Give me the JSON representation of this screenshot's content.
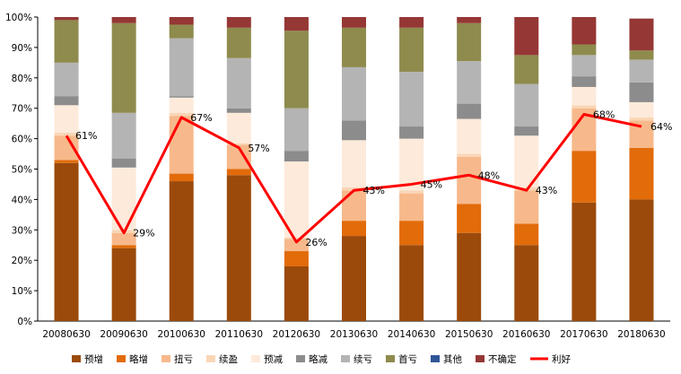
{
  "chart_data": {
    "type": "bar",
    "stacked": true,
    "percent_stacked": true,
    "categories": [
      "20080630",
      "20090630",
      "20100630",
      "20110630",
      "20120630",
      "20130630",
      "20140630",
      "20150630",
      "20160630",
      "20170630",
      "20180630"
    ],
    "ylim": [
      0,
      100
    ],
    "y_ticks": [
      "0%",
      "10%",
      "20%",
      "30%",
      "40%",
      "50%",
      "60%",
      "70%",
      "80%",
      "90%",
      "100%"
    ],
    "series": [
      {
        "name": "预增",
        "color": "#9B4A0B",
        "values": [
          52,
          24,
          46,
          48,
          18,
          28,
          25,
          29,
          25,
          39,
          40
        ]
      },
      {
        "name": "略增",
        "color": "#E26B0A",
        "values": [
          1,
          1,
          2.5,
          2,
          5,
          5,
          8,
          9.5,
          7,
          17,
          17
        ]
      },
      {
        "name": "扭亏",
        "color": "#F7B98B",
        "values": [
          8,
          4,
          19,
          8,
          4,
          10,
          9,
          15.5,
          11,
          14,
          9
        ]
      },
      {
        "name": "续盈",
        "color": "#FAD6B6",
        "values": [
          1,
          1,
          1,
          0.5,
          0.5,
          1,
          1,
          1,
          1,
          1,
          1
        ]
      },
      {
        "name": "预减",
        "color": "#FDEADA",
        "values": [
          9,
          20.5,
          5,
          10,
          25,
          15.5,
          17,
          11.5,
          17,
          6,
          5
        ]
      },
      {
        "name": "略减",
        "color": "#8C8C8C",
        "values": [
          3,
          3,
          0.5,
          1.5,
          3.5,
          6.5,
          4,
          5,
          3,
          3.5,
          6.5
        ]
      },
      {
        "name": "续亏",
        "color": "#B4B4B4",
        "values": [
          11,
          15,
          19,
          16.5,
          14,
          17.5,
          18,
          14,
          14,
          7,
          7.5
        ]
      },
      {
        "name": "首亏",
        "color": "#8E8B4D",
        "values": [
          14,
          29.5,
          4.5,
          10,
          25.5,
          13,
          14.5,
          12.5,
          9.5,
          3.5,
          3
        ]
      },
      {
        "name": "其他",
        "color": "#2F5597",
        "values": [
          0,
          0,
          0,
          0,
          0,
          0,
          0,
          0,
          0,
          0,
          0
        ]
      },
      {
        "name": "不确定",
        "color": "#953735",
        "values": [
          1,
          2,
          2.5,
          3.5,
          4.5,
          3.5,
          3.5,
          2,
          12.5,
          9,
          10.5
        ]
      }
    ],
    "line": {
      "name": "利好",
      "color": "#FF0000",
      "values": [
        61,
        29,
        67,
        57,
        26,
        43,
        45,
        48,
        43,
        68,
        64
      ],
      "labels": [
        "61%",
        "29%",
        "67%",
        "57%",
        "26%",
        "43%",
        "45%",
        "48%",
        "43%",
        "68%",
        "64%"
      ]
    },
    "legend": [
      "预增",
      "略增",
      "扭亏",
      "续盈",
      "预减",
      "略减",
      "续亏",
      "首亏",
      "其他",
      "不确定",
      "利好"
    ],
    "legend_position": "bottom"
  }
}
